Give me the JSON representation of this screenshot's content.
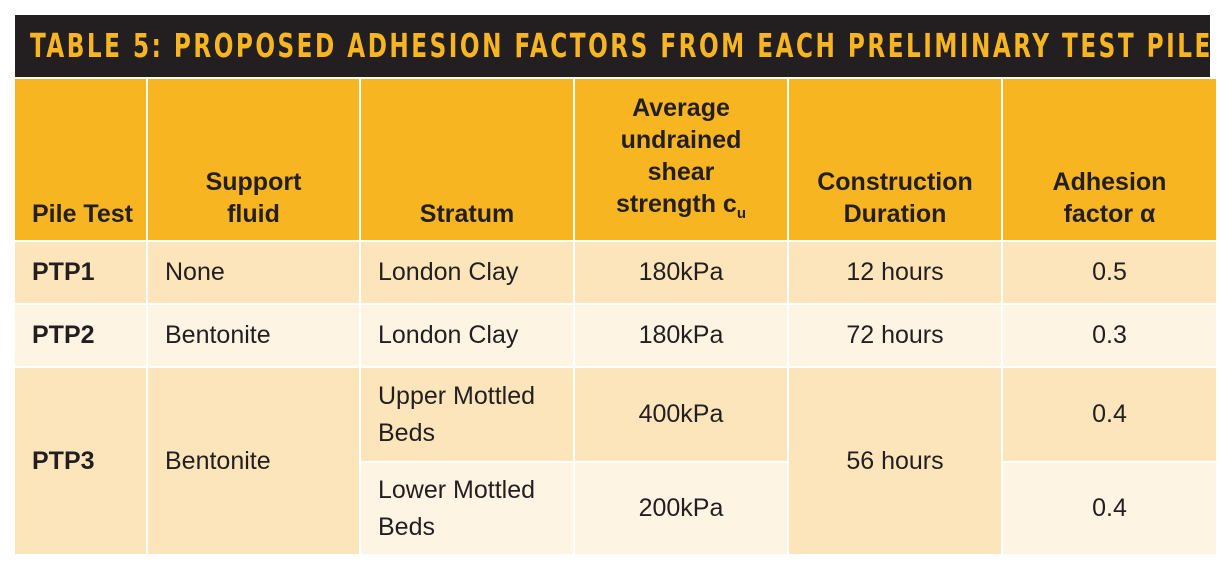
{
  "title": "TABLE 5: PROPOSED ADHESION FACTORS FROM EACH PRELIMINARY TEST PILE",
  "colors": {
    "title_bg": "#231f20",
    "accent": "#f7b522",
    "row_dark": "#fde5bb",
    "row_light": "#fef4e3"
  },
  "headers": {
    "pile_test": "Pile Test",
    "support_fluid": "Support fluid",
    "stratum": "Stratum",
    "shear_strength": "Average undrained shear strength c",
    "shear_strength_sub": "u",
    "duration": "Construction Duration",
    "adhesion": "Adhesion factor α"
  },
  "rows": [
    {
      "pile": "PTP1",
      "fluid": "None",
      "stratum": "London Clay",
      "strength": "180kPa",
      "duration": "12 hours",
      "alpha": "0.5"
    },
    {
      "pile": "PTP2",
      "fluid": "Bentonite",
      "stratum": "London Clay",
      "strength": "180kPa",
      "duration": "72 hours",
      "alpha": "0.3"
    },
    {
      "pile": "PTP3",
      "fluid": "Bentonite",
      "duration": "56 hours",
      "sub": [
        {
          "stratum": "Upper Mottled Beds",
          "strength": "400kPa",
          "alpha": "0.4"
        },
        {
          "stratum": "Lower Mottled Beds",
          "strength": "200kPa",
          "alpha": "0.4"
        }
      ]
    }
  ]
}
